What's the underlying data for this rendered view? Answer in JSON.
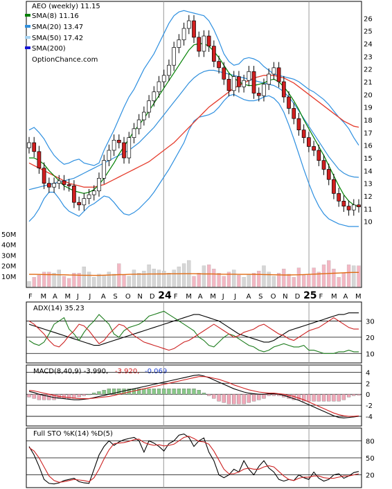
{
  "colors": {
    "up": "#ffffff",
    "down": "#d11f1f",
    "down_vol": "#f3b7c3",
    "up_vol": "#d6d6d6",
    "sma8": "#008000",
    "sma20": "#2f8fdc",
    "sma50": "#e53c2c",
    "sma200": "#1515d6",
    "bollinger": "#2d8fe0",
    "vol_avg": "#e06a12",
    "grid": "#000000"
  },
  "chart_data": [
    {
      "type": "candlestick",
      "name": "price",
      "title": "AEO (weekly) 11.15",
      "watermark": "OptionChance.com",
      "legend": [
        {
          "label": "SMA(8) 11.16",
          "color": "#008000"
        },
        {
          "label": "SMA(20) 13.47",
          "color": "#2f8fdc"
        },
        {
          "label": "SMA(50) 17.42",
          "color": "#a8d4f2"
        },
        {
          "label": "SMA(200)",
          "color": "#1515d6"
        }
      ],
      "ylim": [
        9,
        27
      ],
      "yticks": [
        "10",
        "11",
        "12",
        "13",
        "14",
        "15",
        "16",
        "17",
        "18",
        "19",
        "20",
        "21",
        "22",
        "23",
        "24",
        "25",
        "26"
      ],
      "x_labels": [
        "F",
        "M",
        "A",
        "M",
        "J",
        "J",
        "A",
        "S",
        "O",
        "N",
        "D",
        "24",
        "F",
        "M",
        "A",
        "M",
        "J",
        "J",
        "A",
        "S",
        "O",
        "N",
        "D",
        "25",
        "F",
        "M",
        "A",
        "M"
      ],
      "close": [
        16.2,
        15.5,
        14.2,
        13.0,
        12.7,
        13.0,
        13.2,
        12.9,
        12.8,
        11.5,
        11.3,
        11.8,
        12.1,
        12.4,
        13.4,
        14.8,
        15.6,
        16.4,
        16.2,
        15.0,
        16.6,
        17.3,
        18.0,
        18.6,
        19.5,
        20.2,
        21.0,
        21.5,
        22.3,
        23.7,
        24.3,
        25.2,
        25.8,
        24.5,
        23.4,
        24.6,
        23.8,
        22.6,
        22.1,
        21.2,
        20.3,
        21.4,
        20.6,
        21.1,
        21.8,
        20.1,
        19.9,
        20.8,
        21.6,
        22.1,
        21.0,
        19.8,
        18.9,
        18.1,
        17.2,
        16.6,
        15.9,
        15.6,
        14.8,
        14.1,
        13.3,
        12.2,
        11.6,
        11.2,
        10.9,
        11.3,
        11.15
      ],
      "sma8": [
        15.0,
        15.0,
        14.8,
        14.5,
        14.0,
        13.6,
        13.2,
        12.8,
        12.6,
        12.4,
        12.3,
        12.2,
        12.3,
        12.5,
        12.9,
        13.4,
        14.0,
        14.6,
        15.3,
        15.9,
        16.5,
        17.1,
        17.6,
        18.1,
        18.7,
        19.3,
        19.9,
        20.5,
        21.1,
        21.7,
        22.3,
        22.9,
        23.5,
        23.9,
        24.0,
        24.0,
        23.8,
        23.4,
        22.9,
        22.3,
        21.7,
        21.3,
        21.0,
        20.8,
        20.7,
        20.7,
        20.8,
        20.9,
        21.1,
        21.2,
        21.0,
        20.6,
        20.1,
        19.5,
        18.8,
        18.0,
        17.3,
        16.6,
        15.9,
        15.2,
        14.4,
        13.6,
        12.8,
        12.1,
        11.6,
        11.3,
        11.16
      ],
      "sma20": [
        12.5,
        12.6,
        12.7,
        12.8,
        12.9,
        13.0,
        13.1,
        13.2,
        13.3,
        13.4,
        13.6,
        13.8,
        14.0,
        14.2,
        14.4,
        14.6,
        14.8,
        15.0,
        15.2,
        15.4,
        15.6,
        15.9,
        16.2,
        16.6,
        17.0,
        17.4,
        17.9,
        18.4,
        18.9,
        19.4,
        19.9,
        20.4,
        20.9,
        21.3,
        21.6,
        21.8,
        21.9,
        21.9,
        21.8,
        21.7,
        21.6,
        21.5,
        21.4,
        21.3,
        21.2,
        21.1,
        21.0,
        20.9,
        20.8,
        20.7,
        20.5,
        20.2,
        19.8,
        19.3,
        18.7,
        18.1,
        17.5,
        16.9,
        16.3,
        15.7,
        15.1,
        14.6,
        14.1,
        13.8,
        13.6,
        13.5,
        13.47
      ],
      "sma50": [
        14.6,
        14.4,
        14.2,
        14.0,
        13.8,
        13.6,
        13.4,
        13.2,
        13.0,
        12.9,
        12.8,
        12.7,
        12.7,
        12.7,
        12.8,
        12.9,
        13.1,
        13.3,
        13.5,
        13.7,
        13.9,
        14.1,
        14.3,
        14.5,
        14.7,
        15.0,
        15.3,
        15.6,
        15.9,
        16.2,
        16.6,
        17.0,
        17.4,
        17.8,
        18.2,
        18.6,
        19.0,
        19.3,
        19.6,
        19.9,
        20.2,
        20.5,
        20.7,
        20.9,
        21.1,
        21.3,
        21.4,
        21.5,
        21.5,
        21.5,
        21.4,
        21.3,
        21.1,
        20.9,
        20.6,
        20.3,
        20.0,
        19.7,
        19.4,
        19.1,
        18.8,
        18.5,
        18.2,
        17.9,
        17.7,
        17.5,
        17.42
      ],
      "bb_upper": [
        17.2,
        17.4,
        17.0,
        16.5,
        15.8,
        15.2,
        14.8,
        14.5,
        14.6,
        14.8,
        14.9,
        14.6,
        14.5,
        14.4,
        14.6,
        15.6,
        16.4,
        17.2,
        18.1,
        19.0,
        19.8,
        20.4,
        21.2,
        22.0,
        22.6,
        23.2,
        24.0,
        24.8,
        25.6,
        26.2,
        26.5,
        26.6,
        26.5,
        26.4,
        26.3,
        26.2,
        25.8,
        25.1,
        24.2,
        23.2,
        22.6,
        22.3,
        22.4,
        22.8,
        22.9,
        22.8,
        22.6,
        22.2,
        21.9,
        21.6,
        21.5,
        21.4,
        21.3,
        21.2,
        21.0,
        20.7,
        20.4,
        20.2,
        19.9,
        19.6,
        19.2,
        18.7,
        18.2,
        17.8,
        17.3,
        16.6,
        16.0
      ],
      "bb_lower": [
        10.0,
        10.4,
        11.0,
        11.8,
        12.3,
        12.3,
        11.8,
        11.2,
        10.8,
        10.6,
        10.4,
        10.8,
        11.2,
        11.4,
        11.7,
        12.0,
        11.9,
        11.5,
        11.0,
        10.6,
        10.5,
        10.7,
        11.0,
        11.4,
        11.8,
        12.3,
        12.9,
        13.5,
        14.1,
        14.8,
        15.5,
        16.2,
        17.2,
        17.9,
        18.2,
        18.3,
        18.4,
        18.6,
        19.0,
        19.5,
        19.9,
        20.0,
        19.8,
        19.6,
        19.5,
        19.5,
        19.6,
        19.8,
        19.9,
        19.7,
        19.3,
        18.6,
        17.6,
        16.5,
        15.3,
        14.1,
        13.0,
        12.0,
        11.2,
        10.6,
        10.2,
        10.0,
        9.8,
        9.7,
        9.6,
        9.6,
        9.6
      ],
      "volume_axis": {
        "ylim": [
          0,
          50
        ],
        "ticks": [
          "10M",
          "20M",
          "30M",
          "40M",
          "50M"
        ]
      },
      "volume": [
        5,
        9,
        11,
        14,
        14,
        13,
        16,
        10,
        8,
        13,
        13,
        19,
        14,
        9,
        12,
        11,
        14,
        12,
        22,
        11,
        10,
        16,
        13,
        15,
        21,
        17,
        16,
        15,
        13,
        16,
        19,
        22,
        25,
        10,
        13,
        20,
        21,
        17,
        13,
        10,
        14,
        16,
        11,
        9,
        12,
        13,
        15,
        20,
        14,
        10,
        13,
        17,
        12,
        9,
        18,
        11,
        12,
        18,
        14,
        21,
        25,
        17,
        9,
        13,
        21,
        20,
        20
      ],
      "vol_avg": [
        11.8,
        11.8,
        11.7,
        11.6,
        11.5,
        11.5,
        11.4,
        11.4,
        11.2,
        11.1,
        11.0,
        10.9,
        10.9,
        10.8,
        10.8,
        11.0,
        11.1,
        11.3,
        11.5,
        11.6,
        11.8,
        11.9,
        12.0,
        12.0,
        12.1,
        12.1,
        12.2,
        12.2,
        12.3,
        12.3,
        12.3,
        12.4,
        12.4,
        12.4,
        12.3,
        12.2,
        12.2,
        12.1,
        12.0,
        11.9,
        11.9,
        11.9,
        11.8,
        11.8,
        11.8,
        11.7,
        11.7,
        11.6,
        11.5,
        11.4,
        11.3,
        11.2,
        11.2,
        11.3,
        11.4,
        11.6,
        11.8,
        12.0,
        12.2,
        12.4,
        12.6,
        12.8,
        13.0,
        13.3,
        13.5,
        13.6,
        13.6
      ]
    },
    {
      "type": "line",
      "name": "adx",
      "title": "ADX(14) 35.23",
      "ylim": [
        5,
        40
      ],
      "yticks": [
        "10",
        "20",
        "30"
      ],
      "series": [
        {
          "name": "ADX",
          "color": "#000000",
          "values": [
            28,
            27,
            26,
            25,
            24,
            23,
            22,
            21,
            20,
            19,
            18,
            17,
            16,
            15,
            15,
            16,
            17,
            18,
            19,
            20,
            21,
            22,
            23,
            24,
            25,
            26,
            27,
            28,
            29,
            30,
            31,
            32,
            33,
            34,
            34,
            33,
            32,
            31,
            30,
            28,
            26,
            24,
            22,
            21,
            20,
            19,
            18,
            17,
            17,
            18,
            20,
            22,
            24,
            25,
            26,
            27,
            28,
            29,
            30,
            31,
            32,
            33,
            34,
            34,
            35,
            35,
            35
          ]
        },
        {
          "name": "+DI",
          "color": "#1a7a1a",
          "values": [
            18,
            16,
            15,
            17,
            22,
            28,
            30,
            32,
            25,
            22,
            18,
            23,
            27,
            30,
            34,
            31,
            28,
            22,
            20,
            24,
            26,
            27,
            28,
            30,
            33,
            34,
            35,
            36,
            34,
            32,
            30,
            28,
            26,
            24,
            20,
            18,
            15,
            14,
            17,
            20,
            22,
            21,
            19,
            17,
            15,
            14,
            12,
            11,
            12,
            14,
            15,
            16,
            15,
            14,
            14,
            15,
            12,
            12,
            11,
            10,
            10,
            10,
            11,
            11,
            12,
            11,
            11
          ]
        },
        {
          "name": "-DI",
          "color": "#cc2020",
          "values": [
            30,
            28,
            25,
            22,
            18,
            15,
            14,
            17,
            21,
            24,
            28,
            27,
            24,
            20,
            16,
            18,
            22,
            25,
            28,
            27,
            24,
            21,
            19,
            17,
            16,
            15,
            14,
            13,
            12,
            13,
            15,
            17,
            18,
            20,
            22,
            24,
            26,
            28,
            26,
            24,
            22,
            20,
            21,
            23,
            24,
            25,
            27,
            28,
            26,
            24,
            22,
            21,
            19,
            18,
            20,
            22,
            24,
            25,
            26,
            28,
            30,
            32,
            30,
            28,
            26,
            25,
            25
          ]
        }
      ]
    },
    {
      "type": "line",
      "name": "macd",
      "title": "MACD(8,40,9) -3.990,",
      "values_text": [
        {
          "text": "-3.920,",
          "color": "#d41b1b"
        },
        {
          "text": "-0.069",
          "color": "#1b3fd4"
        }
      ],
      "ylim": [
        -5.5,
        4.8
      ],
      "yticks": [
        "4",
        "2",
        "0",
        "-2",
        "-4"
      ],
      "series": [
        {
          "name": "MACD",
          "color": "#000000",
          "values": [
            0.5,
            0.3,
            0.0,
            -0.2,
            -0.4,
            -0.6,
            -0.7,
            -0.8,
            -0.9,
            -1.0,
            -1.0,
            -0.9,
            -0.8,
            -0.6,
            -0.4,
            -0.2,
            0.0,
            0.2,
            0.4,
            0.6,
            0.8,
            1.0,
            1.2,
            1.4,
            1.6,
            1.8,
            2.0,
            2.2,
            2.4,
            2.6,
            2.8,
            3.0,
            3.2,
            3.4,
            3.5,
            3.3,
            3.0,
            2.6,
            2.2,
            1.8,
            1.4,
            1.0,
            0.7,
            0.4,
            0.2,
            0.1,
            0.0,
            0.0,
            0.1,
            0.1,
            0.0,
            -0.2,
            -0.5,
            -0.8,
            -1.1,
            -1.5,
            -1.9,
            -2.3,
            -2.7,
            -3.1,
            -3.5,
            -3.9,
            -4.2,
            -4.3,
            -4.2,
            -4.1,
            -3.99
          ]
        },
        {
          "name": "Signal",
          "color": "#d11f1f",
          "values": [
            0.7,
            0.6,
            0.4,
            0.2,
            0.0,
            -0.2,
            -0.4,
            -0.5,
            -0.6,
            -0.7,
            -0.8,
            -0.8,
            -0.8,
            -0.7,
            -0.6,
            -0.5,
            -0.4,
            -0.2,
            0.0,
            0.2,
            0.4,
            0.6,
            0.8,
            1.0,
            1.2,
            1.4,
            1.6,
            1.8,
            2.0,
            2.2,
            2.4,
            2.6,
            2.8,
            3.0,
            3.2,
            3.2,
            3.1,
            2.9,
            2.7,
            2.4,
            2.1,
            1.7,
            1.4,
            1.1,
            0.8,
            0.6,
            0.4,
            0.3,
            0.2,
            0.2,
            0.1,
            0.0,
            -0.2,
            -0.4,
            -0.7,
            -1.0,
            -1.4,
            -1.8,
            -2.2,
            -2.6,
            -3.0,
            -3.4,
            -3.7,
            -3.9,
            -4.0,
            -4.0,
            -3.92
          ]
        }
      ],
      "histogram_colors": {
        "pos": "#88c888",
        "neg": "#f0a8b8"
      }
    },
    {
      "type": "line",
      "name": "stochastic",
      "title": "Full STO %K(14) %D(5)",
      "ylim": [
        0,
        100
      ],
      "yticks": [
        "80",
        "50",
        "20"
      ],
      "series": [
        {
          "name": "%K",
          "color": "#000000",
          "values": [
            70,
            55,
            35,
            12,
            5,
            4,
            6,
            10,
            12,
            14,
            8,
            6,
            5,
            30,
            55,
            70,
            80,
            72,
            78,
            82,
            84,
            86,
            80,
            60,
            80,
            76,
            70,
            62,
            75,
            80,
            90,
            92,
            86,
            70,
            80,
            85,
            60,
            45,
            20,
            15,
            20,
            30,
            25,
            45,
            30,
            20,
            35,
            45,
            32,
            25,
            12,
            9,
            12,
            10,
            20,
            15,
            12,
            25,
            14,
            9,
            12,
            20,
            22,
            14,
            18,
            24,
            26
          ]
        },
        {
          "name": "%D",
          "color": "#cc2020",
          "values": [
            68,
            62,
            50,
            34,
            18,
            10,
            7,
            8,
            10,
            12,
            11,
            10,
            8,
            15,
            30,
            48,
            64,
            75,
            76,
            77,
            79,
            82,
            83,
            77,
            74,
            72,
            73,
            71,
            72,
            74,
            80,
            86,
            88,
            84,
            79,
            78,
            74,
            62,
            46,
            30,
            22,
            22,
            25,
            30,
            32,
            30,
            30,
            34,
            36,
            34,
            26,
            18,
            12,
            10,
            14,
            16,
            16,
            18,
            18,
            15,
            14,
            14,
            16,
            18,
            18,
            20,
            22
          ]
        }
      ]
    }
  ]
}
